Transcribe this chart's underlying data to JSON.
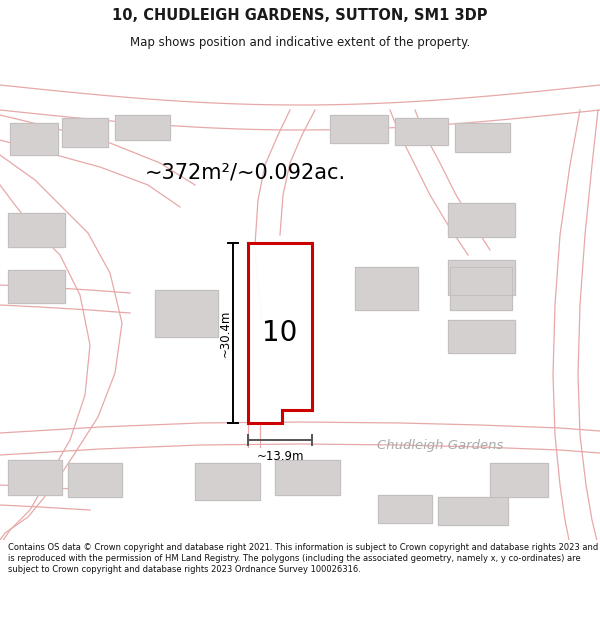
{
  "title": "10, CHUDLEIGH GARDENS, SUTTON, SM1 3DP",
  "subtitle": "Map shows position and indicative extent of the property.",
  "area_text": "~372m²/~0.092ac.",
  "number_label": "10",
  "dim_height": "~30.4m",
  "dim_width": "~13.9m",
  "street_label": "Chudleigh Gardens",
  "footer": "Contains OS data © Crown copyright and database right 2021. This information is subject to Crown copyright and database rights 2023 and is reproduced with the permission of HM Land Registry. The polygons (including the associated geometry, namely x, y co-ordinates) are subject to Crown copyright and database rights 2023 Ordnance Survey 100026316.",
  "bg_color": "#f2efef",
  "map_bg": "#eeebeb",
  "road_color": "#e8a8a8",
  "property_fill": "#ffffff",
  "property_color": "#cc0000",
  "building_fill": "#d4d0d0",
  "building_edge": "#c0bcbc",
  "footer_bg": "#ffffff",
  "title_color": "#1a1a1a",
  "dim_color": "#1a1a1a",
  "street_label_color": "#aaaaaa"
}
